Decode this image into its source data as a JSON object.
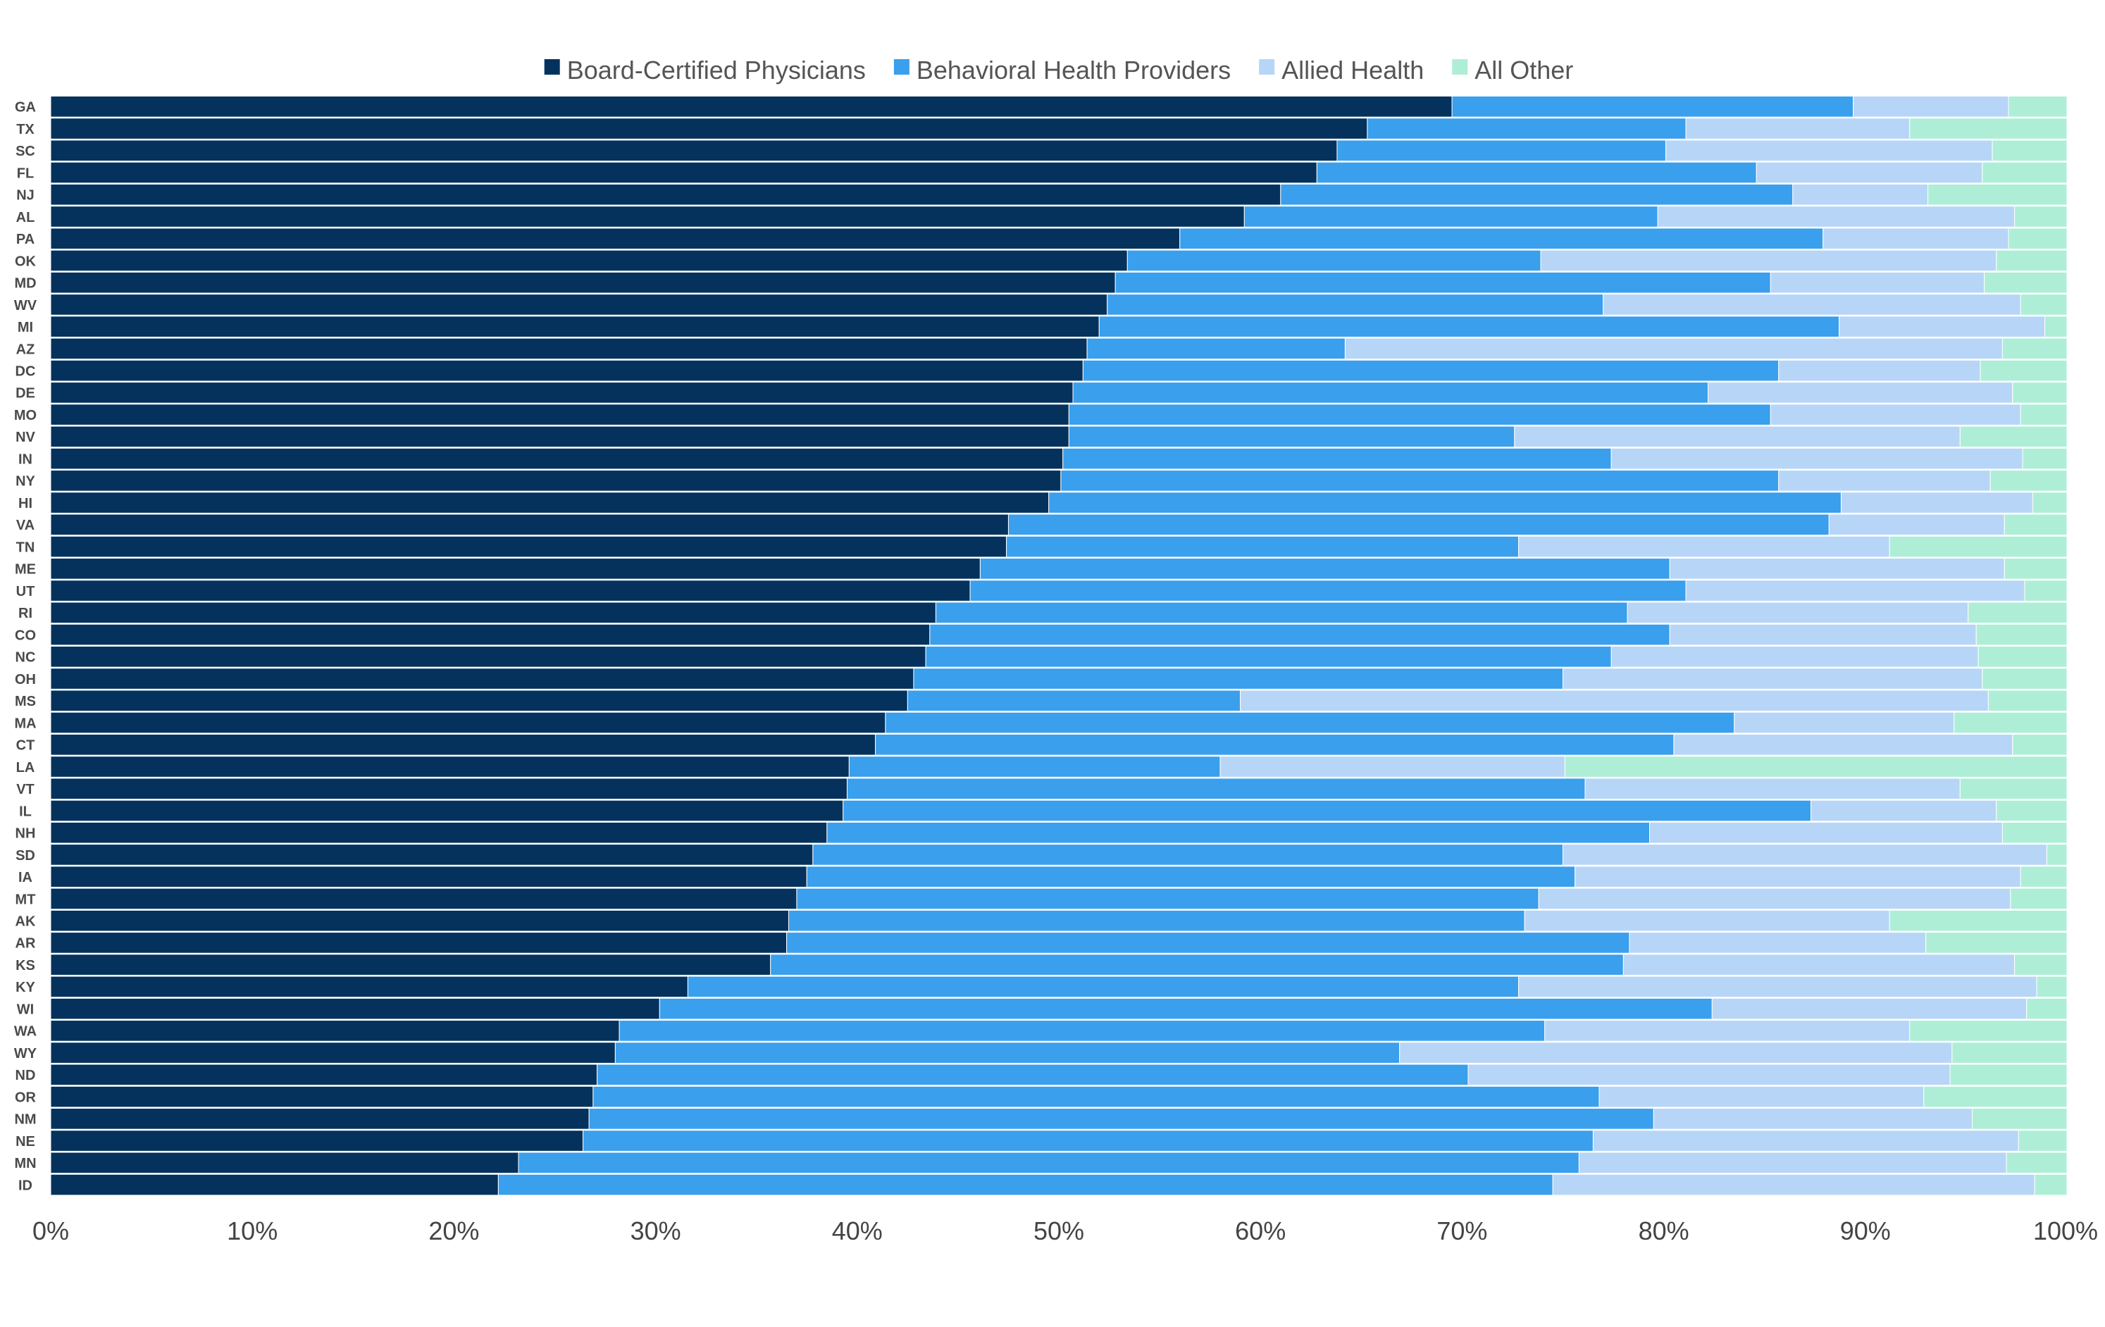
{
  "chart_data": {
    "type": "bar",
    "orientation": "horizontal",
    "stacked": true,
    "percent": true,
    "title": "",
    "xlabel": "",
    "ylabel": "",
    "xlim": [
      0,
      100
    ],
    "x_ticks": [
      "0%",
      "10%",
      "20%",
      "30%",
      "40%",
      "50%",
      "60%",
      "70%",
      "80%",
      "90%",
      "100%"
    ],
    "grid": false,
    "legend_position": "top-center",
    "categories": [
      "GA",
      "TX",
      "SC",
      "FL",
      "NJ",
      "AL",
      "PA",
      "OK",
      "MD",
      "WV",
      "MI",
      "AZ",
      "DC",
      "DE",
      "MO",
      "NV",
      "IN",
      "NY",
      "HI",
      "VA",
      "TN",
      "ME",
      "UT",
      "RI",
      "CO",
      "NC",
      "OH",
      "MS",
      "MA",
      "CT",
      "LA",
      "VT",
      "IL",
      "NH",
      "SD",
      "IA",
      "MT",
      "AK",
      "AR",
      "KS",
      "KY",
      "WI",
      "WA",
      "WY",
      "ND",
      "OR",
      "NM",
      "NE",
      "MN",
      "ID"
    ],
    "series": [
      {
        "name": "Board-Certified Physicians",
        "color": "#04325c",
        "values": [
          69.5,
          65.3,
          63.8,
          62.8,
          61,
          59.2,
          56,
          53.4,
          52.8,
          52.4,
          52,
          51.4,
          51.2,
          50.7,
          50.5,
          50.5,
          50.2,
          50.1,
          49.5,
          47.5,
          47.4,
          46.1,
          45.6,
          43.9,
          43.6,
          43.4,
          42.8,
          42.5,
          41.4,
          40.9,
          39.6,
          39.5,
          39.3,
          38.5,
          37.8,
          37.5,
          37,
          36.6,
          36.5,
          35.7,
          31.6,
          30.2,
          28.2,
          28,
          27.1,
          26.9,
          26.7,
          26.4,
          23.2,
          22.2
        ]
      },
      {
        "name": "Behavioral Health Providers",
        "color": "#3a9fec",
        "values": [
          19.9,
          15.8,
          16.3,
          21.8,
          25.4,
          20.5,
          31.9,
          20.5,
          32.5,
          24.6,
          36.7,
          12.8,
          34.5,
          31.5,
          34.8,
          22.1,
          27.2,
          35.6,
          39.3,
          40.7,
          25.4,
          34.2,
          35.5,
          34.3,
          36.7,
          34,
          32.2,
          16.5,
          42.1,
          39.6,
          18.4,
          36.6,
          48,
          40.8,
          37.2,
          38.1,
          36.8,
          36.5,
          41.8,
          42.3,
          41.2,
          52.2,
          45.9,
          38.9,
          43.2,
          49.9,
          52.8,
          50.1,
          52.6,
          52.3
        ]
      },
      {
        "name": "Allied Health",
        "color": "#b7d6f7",
        "values": [
          7.7,
          11.1,
          16.2,
          11.2,
          6.7,
          17.7,
          9.2,
          22.6,
          10.6,
          20.7,
          10.2,
          32.6,
          10,
          15.1,
          12.4,
          22.1,
          20.4,
          10.5,
          9.5,
          8.7,
          18.4,
          16.6,
          16.8,
          16.9,
          15.2,
          18.2,
          20.8,
          37.1,
          10.9,
          16.8,
          17.1,
          18.6,
          9.2,
          17.5,
          24,
          22.1,
          23.4,
          18.1,
          14.7,
          19.4,
          25.7,
          15.6,
          18.1,
          27.4,
          23.9,
          16.1,
          15.8,
          21.1,
          21.2,
          23.9
        ]
      },
      {
        "name": "All Other",
        "color": "#aeeed7",
        "values": [
          2.9,
          2.4,
          3.7,
          4.2,
          3.7,
          2.1,
          2.9,
          3.5,
          4.1,
          2.3,
          1.1,
          3.2,
          4.1,
          3,
          2.2,
          5.2,
          2.2,
          3.9,
          1.7,
          3,
          4.1,
          3,
          2.1,
          4.9,
          4.5,
          4.4,
          3.8,
          3.8,
          5.6,
          2.7,
          24.9,
          6,
          3.3,
          3.2,
          1,
          2.1,
          3.4,
          8.8,
          7,
          2.5,
          1.6,
          1.9,
          7.8,
          5.7,
          5.8,
          7.2,
          4.6,
          2.5,
          2.9,
          1.7
        ]
      }
    ]
  }
}
